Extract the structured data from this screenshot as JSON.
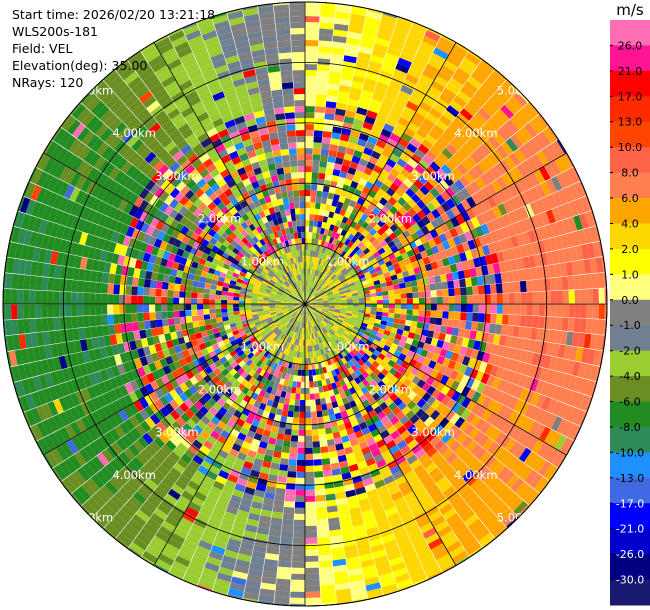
{
  "header": {
    "start_time": "Start time: 2026/02/20 13:21:18",
    "instrument": "WLS200s-181",
    "field": "Field: VEL",
    "elevation": "Elevation(deg): 35.00",
    "nrays": "NRays: 120"
  },
  "chart_data": {
    "type": "heatmap",
    "projection": "polar-ppi",
    "field": "VEL",
    "elevation_deg": 35.0,
    "n_rays": 120,
    "range_km": [
      0,
      5.0
    ],
    "range_rings_km": [
      1.0,
      2.0,
      3.0,
      4.0,
      5.0
    ],
    "range_ring_labels": [
      "1.00km",
      "2.00km",
      "3.00km",
      "4.00km",
      "5.00km"
    ],
    "colorbar": {
      "unit_label": "m/s",
      "tick_labels": [
        "26.0",
        "21.0",
        "17.0",
        "13.0",
        "10.0",
        "8.0",
        "6.0",
        "4.0",
        "2.0",
        "1.0",
        "0.0",
        "-1.0",
        "-2.0",
        "-4.0",
        "-6.0",
        "-8.0",
        "-10.0",
        "-13.0",
        "-17.0",
        "-21.0",
        "-26.0",
        "-30.0"
      ],
      "bounds": [
        30,
        26,
        21,
        17,
        13,
        10,
        8,
        6,
        4,
        2,
        1,
        0,
        -1,
        -2,
        -4,
        -6,
        -8,
        -10,
        -13,
        -17,
        -21,
        -26,
        -30
      ],
      "colors": [
        "#ff6eb4",
        "#ff1493",
        "#ff0000",
        "#ff2a00",
        "#ff4500",
        "#ff6347",
        "#ff7f50",
        "#ffa500",
        "#ffd700",
        "#ffff00",
        "#ffff80",
        "#808080",
        "#708090",
        "#9acd32",
        "#6b8e23",
        "#228b22",
        "#2e8b57",
        "#1e90ff",
        "#4169e1",
        "#0000ff",
        "#0000cd",
        "#000080",
        "#191970"
      ]
    }
  }
}
